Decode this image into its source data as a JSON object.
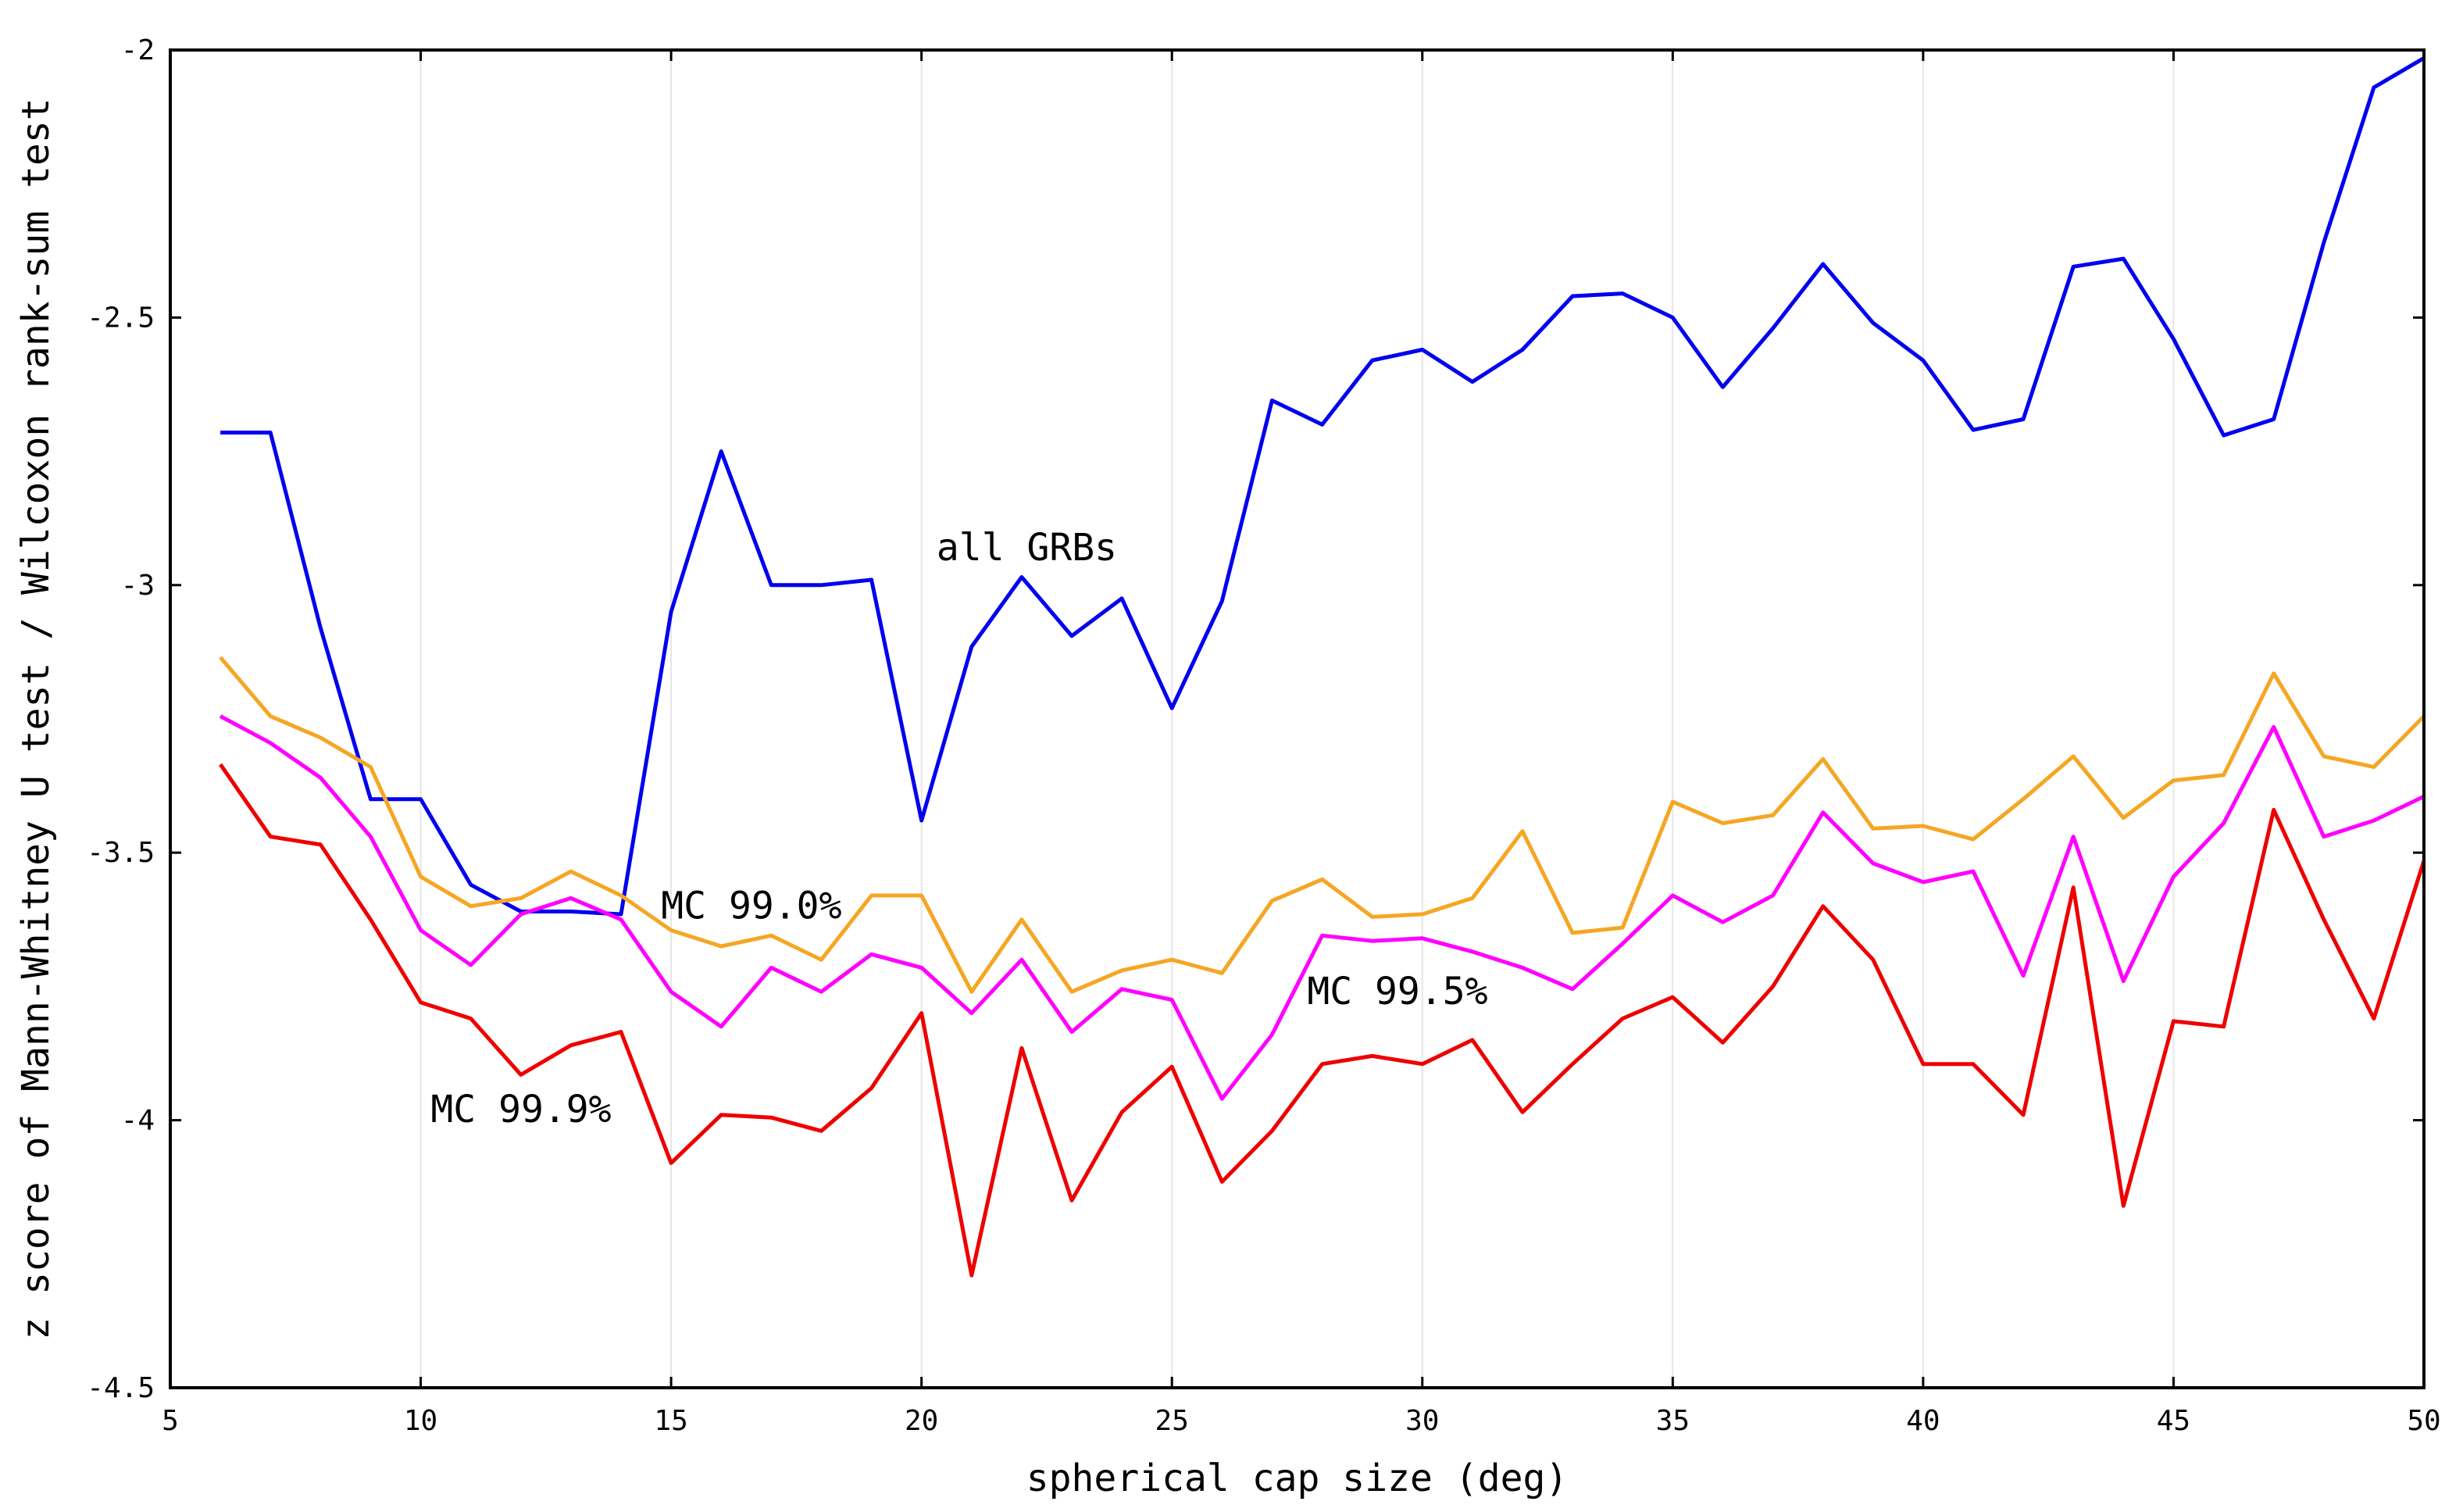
{
  "chart_data": {
    "type": "line",
    "xlabel": "spherical cap size (deg)",
    "ylabel": "z score of Mann-Whitney U test / Wilcoxon rank-sum test",
    "xlim": [
      5,
      50
    ],
    "ylim": [
      -4.5,
      -2
    ],
    "xticks": [
      5,
      10,
      15,
      20,
      25,
      30,
      35,
      40,
      45,
      50
    ],
    "yticks": [
      -2,
      -2.5,
      -3,
      -3.5,
      -4,
      -4.5
    ],
    "xtick_labels": [
      "5",
      "10",
      "15",
      "20",
      "25",
      "30",
      "35",
      "40",
      "45",
      "50"
    ],
    "ytick_labels": [
      "-2",
      "-2.5",
      "-3",
      "-3.5",
      "-4",
      "-4.5"
    ],
    "grid": "vertical",
    "legend": "none",
    "x": [
      6,
      7,
      8,
      9,
      10,
      11,
      12,
      13,
      14,
      15,
      16,
      17,
      18,
      19,
      20,
      21,
      22,
      23,
      24,
      25,
      26,
      27,
      28,
      29,
      30,
      31,
      32,
      33,
      34,
      35,
      36,
      37,
      38,
      39,
      40,
      41,
      42,
      43,
      44,
      45,
      46,
      47,
      48,
      49,
      50
    ],
    "series": [
      {
        "color": "#0000ee",
        "values": [
          -2.715,
          -2.715,
          -3.08,
          -3.4,
          -3.4,
          -3.56,
          -3.61,
          -3.61,
          -3.615,
          -3.05,
          -2.75,
          -3.0,
          -3.0,
          -2.99,
          -3.44,
          -3.115,
          -2.985,
          -3.095,
          -3.025,
          -3.23,
          -3.03,
          -2.655,
          -2.7,
          -2.58,
          -2.56,
          -2.62,
          -2.56,
          -2.46,
          -2.455,
          -2.5,
          -2.63,
          -2.52,
          -2.4,
          -2.51,
          -2.58,
          -2.71,
          -2.69,
          -2.405,
          -2.39,
          -2.54,
          -2.72,
          -2.69,
          -2.36,
          -2.07,
          -2.015
        ]
      },
      {
        "color": "#f5a623",
        "values": [
          -3.135,
          -3.245,
          -3.285,
          -3.34,
          -3.545,
          -3.6,
          -3.585,
          -3.535,
          -3.58,
          -3.645,
          -3.675,
          -3.655,
          -3.7,
          -3.58,
          -3.58,
          -3.76,
          -3.625,
          -3.76,
          -3.72,
          -3.7,
          -3.725,
          -3.59,
          -3.55,
          -3.62,
          -3.615,
          -3.585,
          -3.46,
          -3.65,
          -3.64,
          -3.405,
          -3.445,
          -3.43,
          -3.325,
          -3.455,
          -3.45,
          -3.475,
          -3.4,
          -3.32,
          -3.435,
          -3.365,
          -3.355,
          -3.165,
          -3.32,
          -3.34,
          -3.245
        ]
      },
      {
        "color": "#ff00ff",
        "values": [
          -3.245,
          -3.295,
          -3.36,
          -3.47,
          -3.645,
          -3.71,
          -3.615,
          -3.585,
          -3.625,
          -3.76,
          -3.825,
          -3.715,
          -3.76,
          -3.69,
          -3.715,
          -3.8,
          -3.7,
          -3.835,
          -3.755,
          -3.775,
          -3.96,
          -3.84,
          -3.655,
          -3.665,
          -3.66,
          -3.685,
          -3.715,
          -3.755,
          -3.67,
          -3.58,
          -3.63,
          -3.58,
          -3.425,
          -3.52,
          -3.555,
          -3.535,
          -3.73,
          -3.47,
          -3.74,
          -3.545,
          -3.445,
          -3.265,
          -3.47,
          -3.44,
          -3.395
        ]
      },
      {
        "color": "#ee0000",
        "values": [
          -3.335,
          -3.47,
          -3.485,
          -3.625,
          -3.78,
          -3.81,
          -3.915,
          -3.86,
          -3.835,
          -4.08,
          -3.99,
          -3.995,
          -4.02,
          -3.94,
          -3.8,
          -4.29,
          -3.865,
          -4.15,
          -3.985,
          -3.9,
          -4.115,
          -4.02,
          -3.895,
          -3.88,
          -3.895,
          -3.85,
          -3.985,
          -3.895,
          -3.81,
          -3.77,
          -3.855,
          -3.75,
          -3.6,
          -3.7,
          -3.895,
          -3.895,
          -3.99,
          -3.565,
          -4.16,
          -3.815,
          -3.825,
          -3.42,
          -3.625,
          -3.81,
          -3.515
        ]
      }
    ],
    "annotations": [
      {
        "text": "all GRBs",
        "x": 20.3,
        "y": -2.93
      },
      {
        "text": "MC 99.0%",
        "x": 14.8,
        "y": -3.6
      },
      {
        "text": "MC 99.5%",
        "x": 27.7,
        "y": -3.76
      },
      {
        "text": "MC 99.9%",
        "x": 10.2,
        "y": -3.98
      }
    ]
  }
}
